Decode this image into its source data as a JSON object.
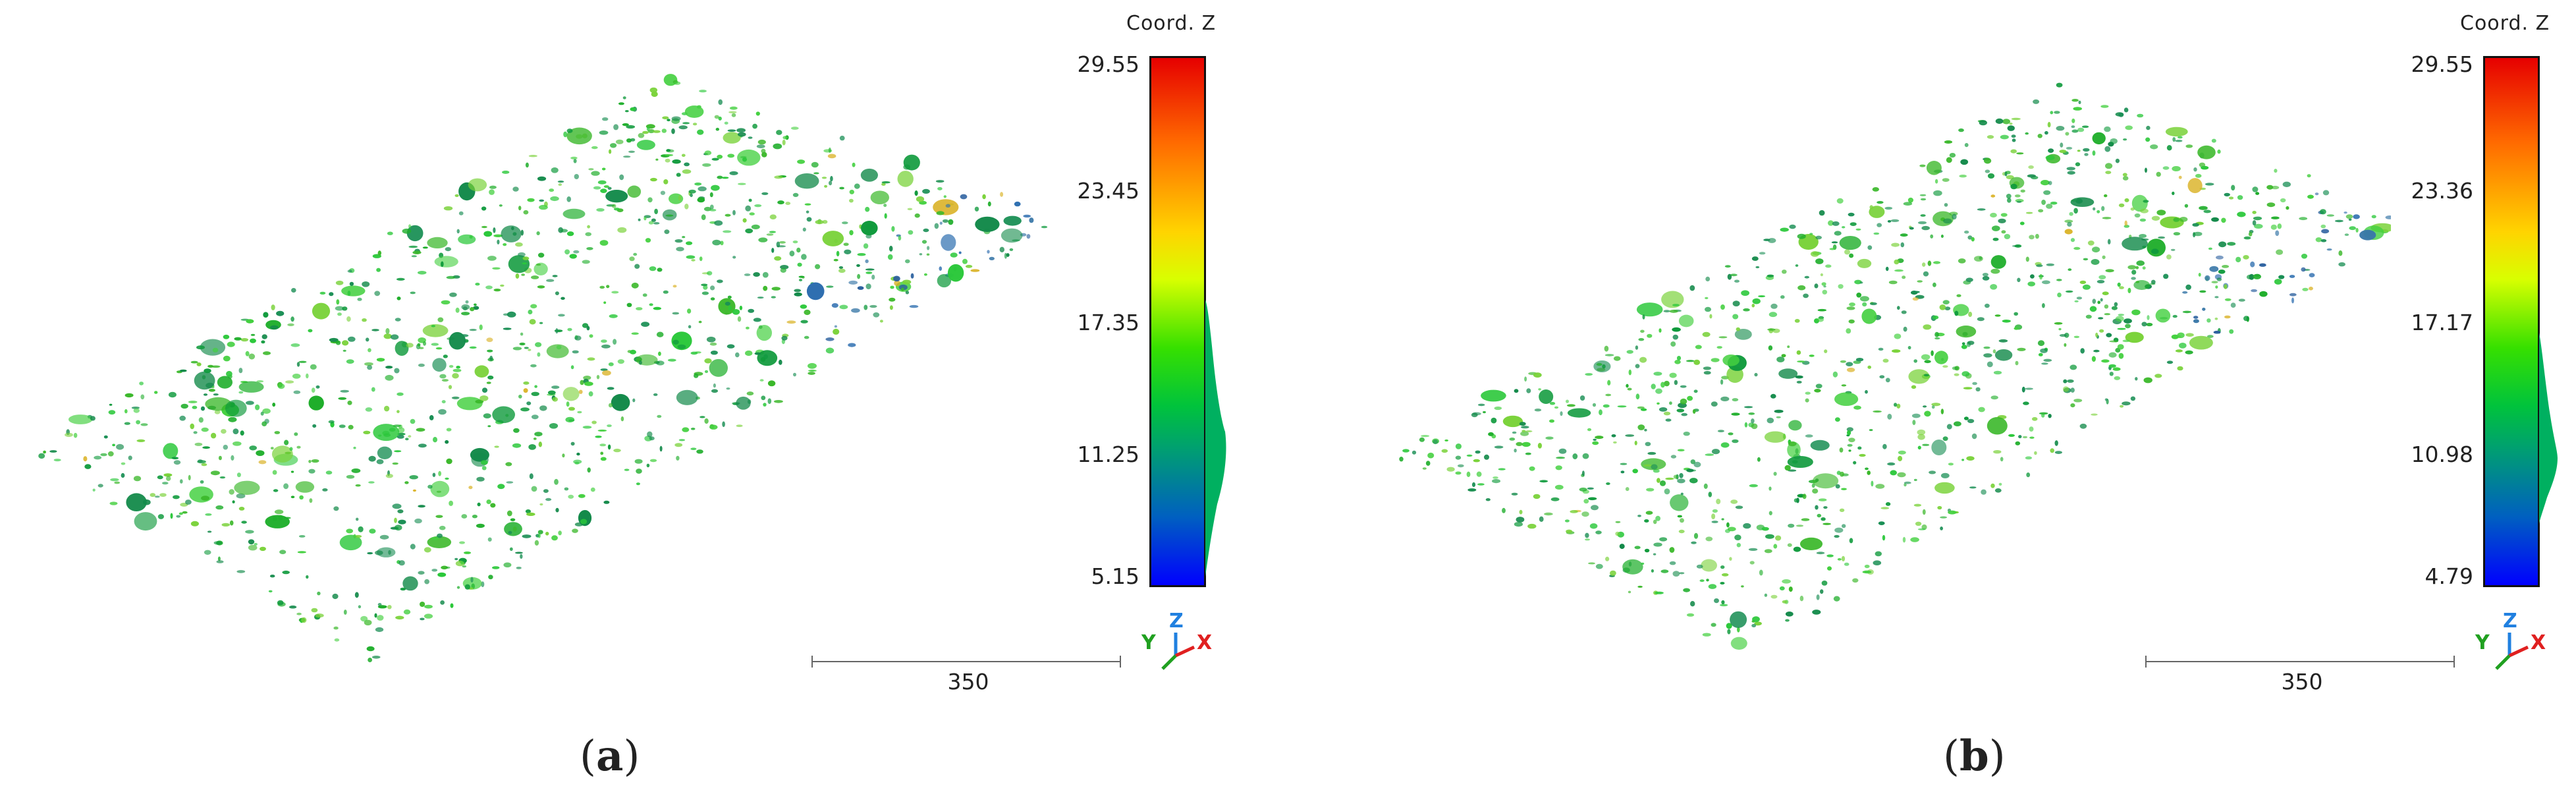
{
  "panels": [
    {
      "caption_open": "(",
      "caption_letter": "a",
      "caption_close": ")",
      "colorbar": {
        "title": "Coord. Z",
        "ticks": [
          "29.55",
          "23.45",
          "17.35",
          "11.25",
          "5.15"
        ]
      },
      "scale_bar_label": "350",
      "axes": {
        "y": "Y",
        "z": "Z",
        "x": "X"
      }
    },
    {
      "caption_open": "(",
      "caption_letter": "b",
      "caption_close": ")",
      "colorbar": {
        "title": "Coord. Z",
        "ticks": [
          "29.55",
          "23.36",
          "17.17",
          "10.98",
          "4.79"
        ]
      },
      "scale_bar_label": "350",
      "axes": {
        "y": "Y",
        "z": "Z",
        "x": "X"
      }
    }
  ],
  "colors": {
    "low": "#0000ff",
    "mid_low": "#00a070",
    "mid": "#36e000",
    "high": "#ffd400",
    "top": "#e60000",
    "axis_x": "#e02020",
    "axis_y": "#20a020",
    "axis_z": "#2080e0"
  }
}
